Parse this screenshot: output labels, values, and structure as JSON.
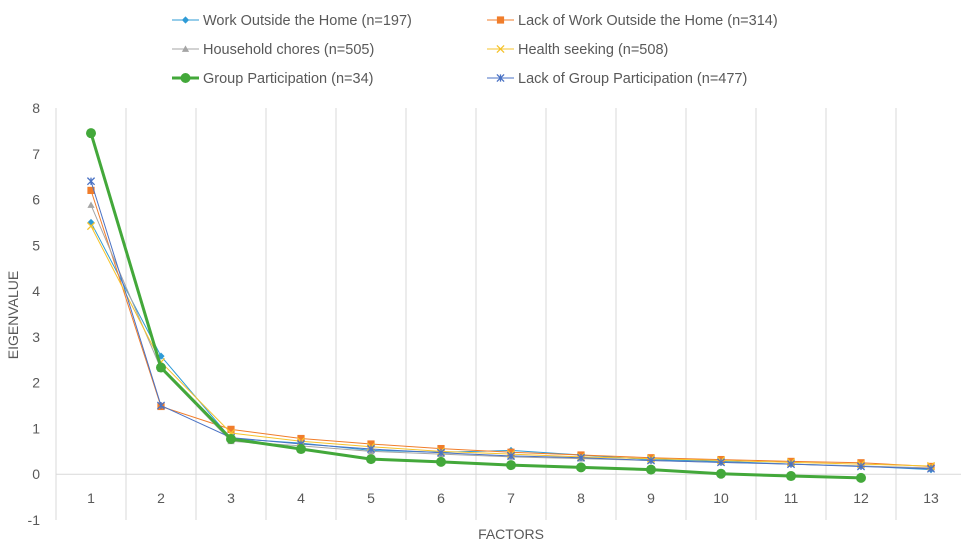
{
  "chart_data": {
    "type": "line",
    "xlabel": "FACTORS",
    "ylabel": "EIGENVALUE",
    "categories": [
      "1",
      "2",
      "3",
      "4",
      "5",
      "6",
      "7",
      "8",
      "9",
      "10",
      "11",
      "12",
      "13"
    ],
    "ylim": [
      -1,
      8
    ],
    "yticks": [
      "-1",
      "0",
      "1",
      "2",
      "3",
      "4",
      "5",
      "6",
      "7",
      "8"
    ],
    "grid": "vertical",
    "legend_position": "top",
    "series": [
      {
        "name": "Work Outside the Home (n=197)",
        "color": "#2e9bd6",
        "marker": "diamond",
        "values": [
          5.5,
          2.58,
          0.78,
          0.68,
          0.52,
          0.48,
          0.52,
          0.42,
          0.32,
          0.28,
          0.22,
          0.18,
          0.1
        ]
      },
      {
        "name": "Lack of Work Outside the Home (n=314)",
        "color": "#f07d2b",
        "marker": "square",
        "values": [
          6.2,
          1.48,
          0.98,
          0.78,
          0.66,
          0.56,
          0.48,
          0.42,
          0.36,
          0.32,
          0.28,
          0.25,
          0.17
        ]
      },
      {
        "name": "Household chores (n=505)",
        "color": "#a5a5a5",
        "marker": "triangle",
        "values": [
          5.88,
          2.3,
          0.72,
          0.62,
          0.5,
          0.44,
          0.38,
          0.34,
          0.3,
          0.26,
          0.22,
          0.18,
          0.14
        ]
      },
      {
        "name": "Health seeking (n=508)",
        "color": "#f5c32c",
        "marker": "x",
        "values": [
          5.42,
          2.45,
          0.9,
          0.72,
          0.6,
          0.5,
          0.44,
          0.38,
          0.34,
          0.3,
          0.26,
          0.22,
          0.18
        ]
      },
      {
        "name": "Group Participation (n=34)",
        "color": "#43a83a",
        "marker": "circle",
        "values": [
          7.45,
          2.33,
          0.77,
          0.55,
          0.33,
          0.27,
          0.2,
          0.15,
          0.1,
          0.01,
          -0.04,
          -0.08,
          null
        ]
      },
      {
        "name": "Lack of Group Participation (n=477)",
        "color": "#4a72c4",
        "marker": "star",
        "values": [
          6.4,
          1.5,
          0.8,
          0.66,
          0.55,
          0.47,
          0.4,
          0.36,
          0.3,
          0.26,
          0.22,
          0.17,
          0.12
        ]
      }
    ]
  }
}
